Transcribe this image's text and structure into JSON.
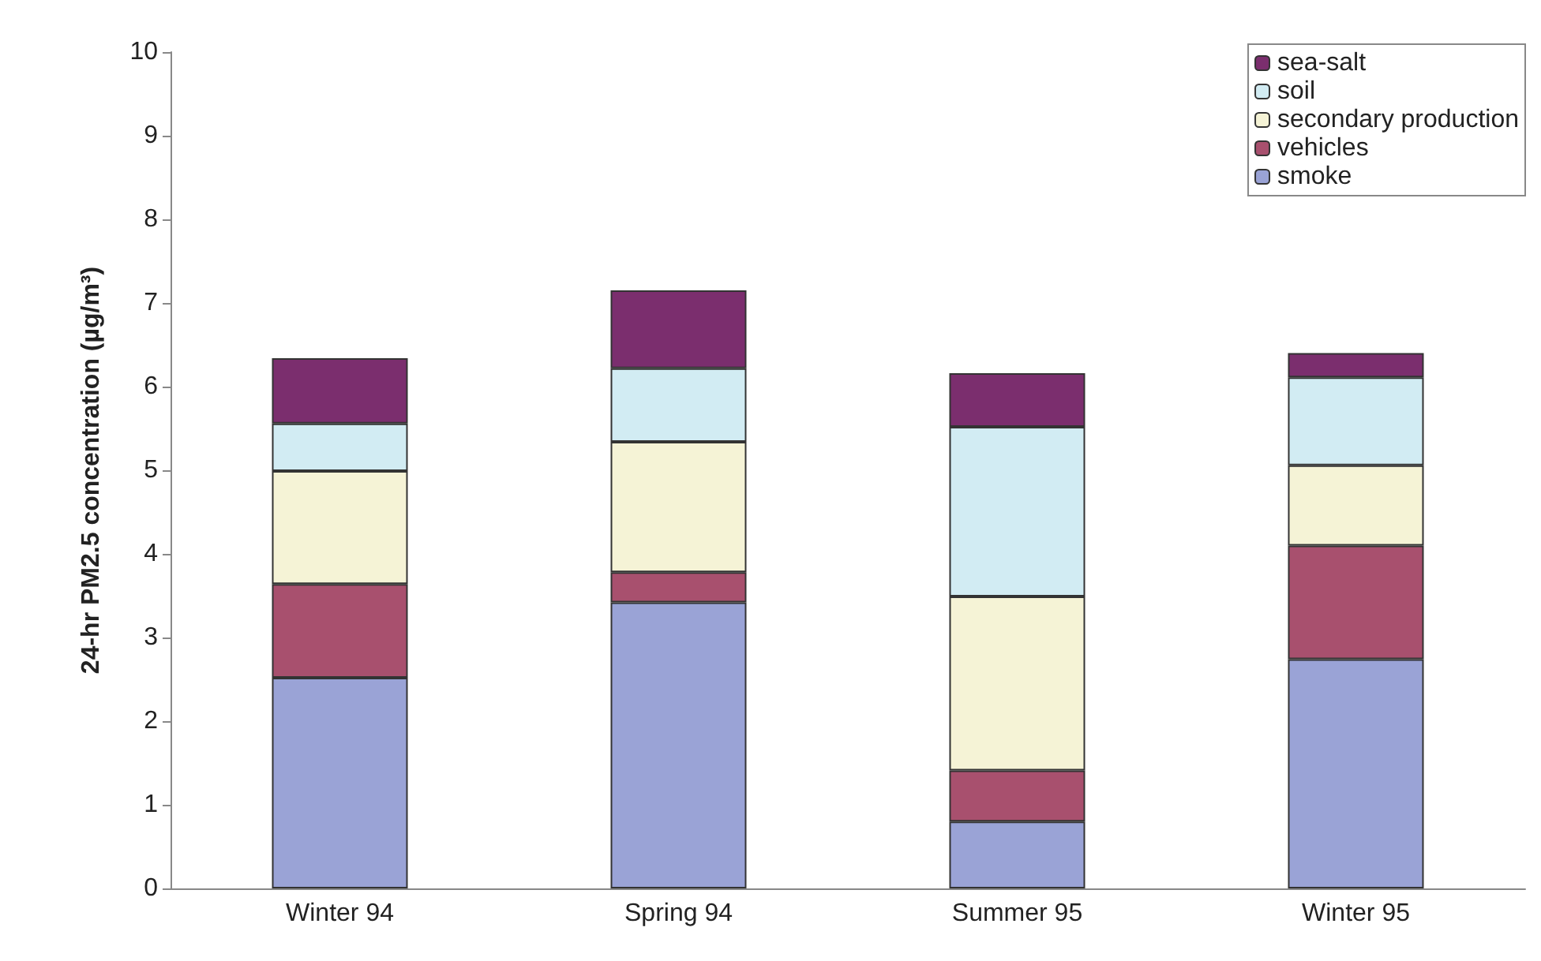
{
  "chart_data": {
    "type": "bar",
    "stacked": true,
    "ylabel": "24-hr PM2.5 concentration (µg/m³)",
    "categories": [
      "Winter 94",
      "Spring 94",
      "Summer 95",
      "Winter 95"
    ],
    "series": [
      {
        "name": "smoke",
        "color": "#9aa3d6",
        "values": [
          2.52,
          3.42,
          0.8,
          2.74
        ]
      },
      {
        "name": "vehicles",
        "color": "#a8506e",
        "values": [
          1.12,
          0.36,
          0.61,
          1.36
        ]
      },
      {
        "name": "secondary production",
        "color": "#f5f3d6",
        "values": [
          1.35,
          1.56,
          2.08,
          0.96
        ]
      },
      {
        "name": "soil",
        "color": "#d2ecf3",
        "values": [
          0.57,
          0.88,
          2.03,
          1.05
        ]
      },
      {
        "name": "sea-salt",
        "color": "#7b2e6e",
        "values": [
          0.78,
          0.93,
          0.64,
          0.29
        ]
      }
    ],
    "ylim": [
      0,
      10
    ],
    "yticks": [
      0,
      1,
      2,
      3,
      4,
      5,
      6,
      7,
      8,
      9,
      10
    ],
    "grid": false,
    "legend": "top right"
  }
}
